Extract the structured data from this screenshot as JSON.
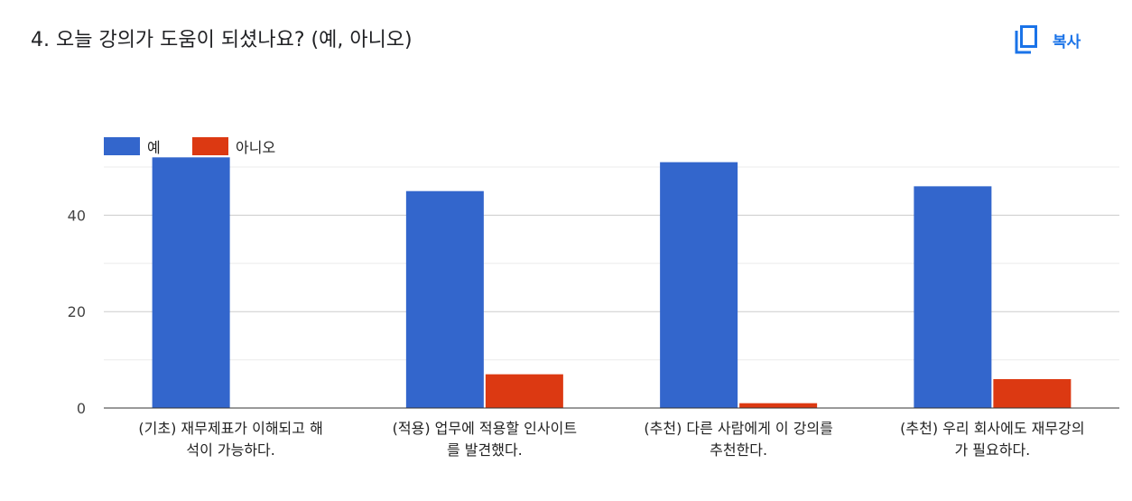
{
  "question": {
    "title": "4. 오늘 강의가 도움이 되셨나요? (예, 아니오)"
  },
  "toolbar": {
    "copy_label": "복사",
    "copy_icon": "copy-icon"
  },
  "chart_data": {
    "type": "bar",
    "categories": [
      [
        "(기초) 재무제표가 이해되고 해",
        "석이 가능하다."
      ],
      [
        "(적용) 업무에 적용할 인사이트",
        "를 발견했다."
      ],
      [
        "(추천) 다른 사람에게 이 강의를",
        "추천한다."
      ],
      [
        "(추천) 우리 회사에도 재무강의",
        "가 필요하다."
      ]
    ],
    "series": [
      {
        "name": "예",
        "color": "#3366cc",
        "values": [
          52,
          45,
          51,
          46
        ]
      },
      {
        "name": "아니오",
        "color": "#dc3912",
        "values": [
          0,
          7,
          1,
          6
        ]
      }
    ],
    "yticks": [
      "0",
      "20",
      "40"
    ],
    "ylim": [
      0,
      50
    ],
    "grid": true,
    "legend": "top-left"
  }
}
